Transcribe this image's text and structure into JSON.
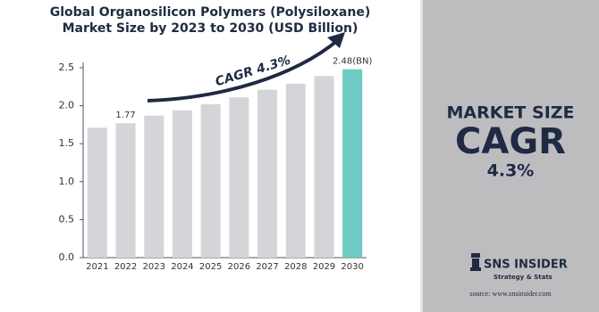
{
  "chart_data": {
    "type": "bar",
    "title": "Global Organosilicon Polymers (Polysiloxane) Market Size by 2023 to 2030 (USD Billion)",
    "annotation": "CAGR 4.3%",
    "categories": [
      "2021",
      "2022",
      "2023",
      "2024",
      "2025",
      "2026",
      "2027",
      "2028",
      "2029",
      "2030"
    ],
    "values": [
      1.71,
      1.77,
      1.87,
      1.94,
      2.02,
      2.11,
      2.21,
      2.29,
      2.39,
      2.48
    ],
    "value_labels": [
      null,
      "1.77",
      null,
      null,
      null,
      null,
      null,
      null,
      null,
      "2.48(BN)"
    ],
    "colors": [
      "#d3d5d8",
      "#d3d5d8",
      "#d3d5d8",
      "#d3d5d8",
      "#d3d5d8",
      "#d3d5d8",
      "#d3d5d8",
      "#d3d5d8",
      "#d3d5d8",
      "#6ccbc4"
    ],
    "ylim": [
      0,
      2.5
    ],
    "yticks": [
      {
        "value": 0,
        "label": "0.0"
      },
      0.5,
      {
        "value": 1,
        "label": "1.0"
      },
      1.5,
      {
        "value": 2,
        "label": "2.0"
      },
      2.5
    ],
    "grid": false
  },
  "panel": {
    "heading": "MARKET SIZE",
    "metric": "CAGR",
    "value": "4.3%"
  },
  "logo": {
    "name": "SNS INSIDER",
    "tagline": "Strategy & Stats"
  },
  "source": "source: www.snsinsider.com"
}
